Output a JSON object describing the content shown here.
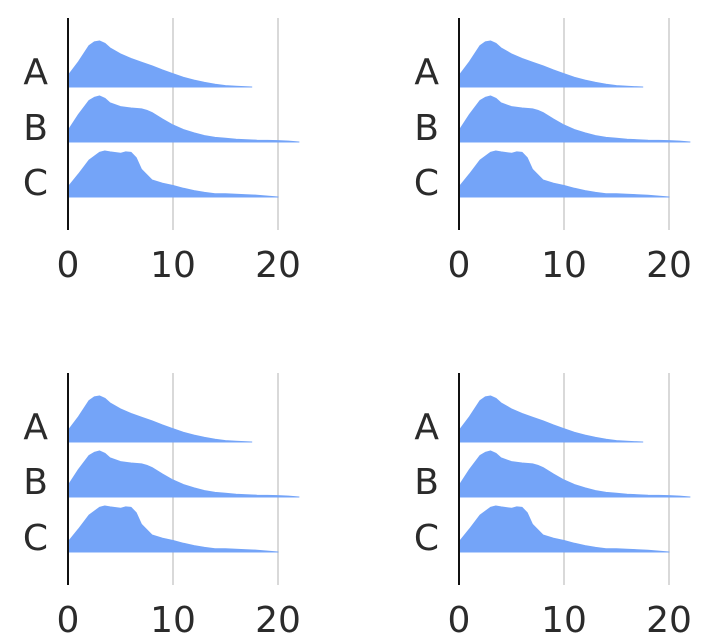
{
  "chart_data": [
    {
      "type": "ridgeline",
      "categories": [
        "A",
        "B",
        "C"
      ],
      "x_ticks": [
        0,
        10,
        20
      ],
      "xlim": [
        0,
        22
      ],
      "grid": "vertical",
      "fill_color": "#74a4f8",
      "series": [
        {
          "name": "A",
          "x": [
            0,
            1,
            2,
            2.5,
            3,
            3.5,
            4,
            5,
            6,
            7,
            8,
            9,
            10,
            11,
            12,
            13,
            14,
            15,
            16,
            17,
            17.5
          ],
          "density": [
            0.25,
            0.55,
            0.9,
            0.98,
            1.0,
            0.95,
            0.85,
            0.72,
            0.62,
            0.54,
            0.46,
            0.37,
            0.29,
            0.21,
            0.15,
            0.1,
            0.06,
            0.03,
            0.015,
            0.005,
            0
          ]
        },
        {
          "name": "B",
          "x": [
            0,
            1,
            2,
            2.5,
            3,
            3.5,
            4,
            5,
            6,
            7,
            7.5,
            8,
            9,
            10,
            11,
            12,
            13,
            14,
            15,
            16,
            17,
            18,
            19,
            20,
            21,
            22
          ],
          "density": [
            0.25,
            0.6,
            0.9,
            0.97,
            1.0,
            0.95,
            0.85,
            0.77,
            0.74,
            0.72,
            0.69,
            0.64,
            0.5,
            0.37,
            0.27,
            0.2,
            0.14,
            0.1,
            0.08,
            0.06,
            0.05,
            0.04,
            0.035,
            0.03,
            0.02,
            0
          ]
        },
        {
          "name": "C",
          "x": [
            0,
            1,
            2,
            3,
            3.5,
            4,
            5,
            5.5,
            6,
            6.5,
            7,
            8,
            9,
            10,
            11,
            12,
            13,
            14,
            15,
            16,
            17,
            18,
            19,
            20
          ],
          "density": [
            0.22,
            0.5,
            0.8,
            0.97,
            1.0,
            0.98,
            0.95,
            0.98,
            0.97,
            0.85,
            0.6,
            0.37,
            0.3,
            0.25,
            0.19,
            0.14,
            0.1,
            0.07,
            0.07,
            0.06,
            0.05,
            0.04,
            0.02,
            0
          ]
        }
      ]
    },
    {
      "type": "ridgeline",
      "categories": [
        "A",
        "B",
        "C"
      ],
      "x_ticks": [
        0,
        10,
        20
      ],
      "xlim": [
        0,
        22
      ],
      "grid": "vertical",
      "fill_color": "#74a4f8",
      "series": [
        {
          "name": "A",
          "x": [
            0,
            1,
            2,
            2.5,
            3,
            3.5,
            4,
            5,
            6,
            7,
            8,
            9,
            10,
            11,
            12,
            13,
            14,
            15,
            16,
            17,
            17.5
          ],
          "density": [
            0.25,
            0.55,
            0.9,
            0.98,
            1.0,
            0.95,
            0.85,
            0.72,
            0.62,
            0.54,
            0.46,
            0.37,
            0.29,
            0.21,
            0.15,
            0.1,
            0.06,
            0.03,
            0.015,
            0.005,
            0
          ]
        },
        {
          "name": "B",
          "x": [
            0,
            1,
            2,
            2.5,
            3,
            3.5,
            4,
            5,
            6,
            7,
            7.5,
            8,
            9,
            10,
            11,
            12,
            13,
            14,
            15,
            16,
            17,
            18,
            19,
            20,
            21,
            22
          ],
          "density": [
            0.25,
            0.6,
            0.9,
            0.97,
            1.0,
            0.95,
            0.85,
            0.77,
            0.74,
            0.72,
            0.69,
            0.64,
            0.5,
            0.37,
            0.27,
            0.2,
            0.14,
            0.1,
            0.08,
            0.06,
            0.05,
            0.04,
            0.035,
            0.03,
            0.02,
            0
          ]
        },
        {
          "name": "C",
          "x": [
            0,
            1,
            2,
            3,
            3.5,
            4,
            5,
            5.5,
            6,
            6.5,
            7,
            8,
            9,
            10,
            11,
            12,
            13,
            14,
            15,
            16,
            17,
            18,
            19,
            20
          ],
          "density": [
            0.22,
            0.5,
            0.8,
            0.97,
            1.0,
            0.98,
            0.95,
            0.98,
            0.97,
            0.85,
            0.6,
            0.37,
            0.3,
            0.25,
            0.19,
            0.14,
            0.1,
            0.07,
            0.07,
            0.06,
            0.05,
            0.04,
            0.02,
            0
          ]
        }
      ]
    },
    {
      "type": "ridgeline",
      "categories": [
        "A",
        "B",
        "C"
      ],
      "x_ticks": [
        0,
        10,
        20
      ],
      "xlim": [
        0,
        22
      ],
      "grid": "vertical",
      "fill_color": "#74a4f8",
      "series": [
        {
          "name": "A",
          "x": [
            0,
            1,
            2,
            2.5,
            3,
            3.5,
            4,
            5,
            6,
            7,
            8,
            9,
            10,
            11,
            12,
            13,
            14,
            15,
            16,
            17,
            17.5
          ],
          "density": [
            0.25,
            0.55,
            0.9,
            0.98,
            1.0,
            0.95,
            0.85,
            0.72,
            0.62,
            0.54,
            0.46,
            0.37,
            0.29,
            0.21,
            0.15,
            0.1,
            0.06,
            0.03,
            0.015,
            0.005,
            0
          ]
        },
        {
          "name": "B",
          "x": [
            0,
            1,
            2,
            2.5,
            3,
            3.5,
            4,
            5,
            6,
            7,
            7.5,
            8,
            9,
            10,
            11,
            12,
            13,
            14,
            15,
            16,
            17,
            18,
            19,
            20,
            21,
            22
          ],
          "density": [
            0.25,
            0.6,
            0.9,
            0.97,
            1.0,
            0.95,
            0.85,
            0.77,
            0.74,
            0.72,
            0.69,
            0.64,
            0.5,
            0.37,
            0.27,
            0.2,
            0.14,
            0.1,
            0.08,
            0.06,
            0.05,
            0.04,
            0.035,
            0.03,
            0.02,
            0
          ]
        },
        {
          "name": "C",
          "x": [
            0,
            1,
            2,
            3,
            3.5,
            4,
            5,
            5.5,
            6,
            6.5,
            7,
            8,
            9,
            10,
            11,
            12,
            13,
            14,
            15,
            16,
            17,
            18,
            19,
            20
          ],
          "density": [
            0.22,
            0.5,
            0.8,
            0.97,
            1.0,
            0.98,
            0.95,
            0.98,
            0.97,
            0.85,
            0.6,
            0.37,
            0.3,
            0.25,
            0.19,
            0.14,
            0.1,
            0.07,
            0.07,
            0.06,
            0.05,
            0.04,
            0.02,
            0
          ]
        }
      ]
    },
    {
      "type": "ridgeline",
      "categories": [
        "A",
        "B",
        "C"
      ],
      "x_ticks": [
        0,
        10,
        20
      ],
      "xlim": [
        0,
        22
      ],
      "grid": "vertical",
      "fill_color": "#74a4f8",
      "series": [
        {
          "name": "A",
          "x": [
            0,
            1,
            2,
            2.5,
            3,
            3.5,
            4,
            5,
            6,
            7,
            8,
            9,
            10,
            11,
            12,
            13,
            14,
            15,
            16,
            17,
            17.5
          ],
          "density": [
            0.25,
            0.55,
            0.9,
            0.98,
            1.0,
            0.95,
            0.85,
            0.72,
            0.62,
            0.54,
            0.46,
            0.37,
            0.29,
            0.21,
            0.15,
            0.1,
            0.06,
            0.03,
            0.015,
            0.005,
            0
          ]
        },
        {
          "name": "B",
          "x": [
            0,
            1,
            2,
            2.5,
            3,
            3.5,
            4,
            5,
            6,
            7,
            7.5,
            8,
            9,
            10,
            11,
            12,
            13,
            14,
            15,
            16,
            17,
            18,
            19,
            20,
            21,
            22
          ],
          "density": [
            0.25,
            0.6,
            0.9,
            0.97,
            1.0,
            0.95,
            0.85,
            0.77,
            0.74,
            0.72,
            0.69,
            0.64,
            0.5,
            0.37,
            0.27,
            0.2,
            0.14,
            0.1,
            0.08,
            0.06,
            0.05,
            0.04,
            0.035,
            0.03,
            0.02,
            0
          ]
        },
        {
          "name": "C",
          "x": [
            0,
            1,
            2,
            3,
            3.5,
            4,
            5,
            5.5,
            6,
            6.5,
            7,
            8,
            9,
            10,
            11,
            12,
            13,
            14,
            15,
            16,
            17,
            18,
            19,
            20
          ],
          "density": [
            0.22,
            0.5,
            0.8,
            0.97,
            1.0,
            0.98,
            0.95,
            0.98,
            0.97,
            0.85,
            0.6,
            0.37,
            0.3,
            0.25,
            0.19,
            0.14,
            0.1,
            0.07,
            0.07,
            0.06,
            0.05,
            0.04,
            0.02,
            0
          ]
        }
      ]
    }
  ]
}
